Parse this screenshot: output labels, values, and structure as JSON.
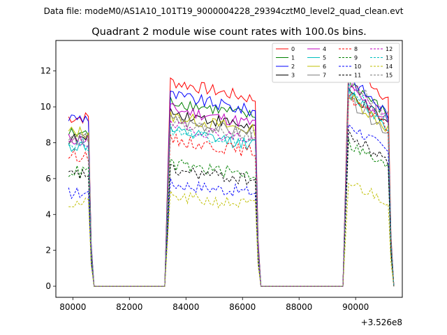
{
  "chart_data": {
    "type": "line",
    "suptitle": "Data file: modeM0/AS1A10_101T19_9000004228_29394cztM0_level2_quad_clean.evt",
    "title": "Quadrant 2 module wise count rates with 100.0s bins.",
    "xlabel": "",
    "ylabel": "",
    "x_offset_label": "+3.526e8",
    "xlim": [
      79400,
      91650
    ],
    "ylim": [
      -0.62,
      13.7
    ],
    "x_ticks": [
      80000,
      82000,
      84000,
      86000,
      88000,
      90000
    ],
    "x_tick_labels": [
      "80000",
      "82000",
      "84000",
      "86000",
      "88000",
      "90000"
    ],
    "y_ticks": [
      0,
      2,
      4,
      6,
      8,
      10,
      12
    ],
    "y_tick_labels": [
      "0",
      "2",
      "4",
      "6",
      "8",
      "10",
      "12"
    ],
    "grid": false,
    "legend": {
      "placement": "top-right",
      "columns": 4,
      "entries": [
        "0",
        "1",
        "2",
        "3",
        "4",
        "5",
        "6",
        "7",
        "8",
        "9",
        "10",
        "11",
        "12",
        "13",
        "14",
        "15"
      ]
    },
    "segments": [
      {
        "start": 79850,
        "end": 80650
      },
      {
        "start": 83350,
        "end": 86550
      },
      {
        "start": 89650,
        "end": 91250
      }
    ],
    "gaps_value": 0,
    "series": [
      {
        "name": "0",
        "color": "#ff0000",
        "dash": "solid",
        "levels": [
          9.4,
          10.6,
          11.4
        ]
      },
      {
        "name": "1",
        "color": "#008000",
        "dash": "solid",
        "levels": [
          8.5,
          9.6,
          10.4
        ]
      },
      {
        "name": "2",
        "color": "#0000ff",
        "dash": "solid",
        "levels": [
          9.4,
          9.9,
          10.5
        ]
      },
      {
        "name": "3",
        "color": "#000000",
        "dash": "solid",
        "levels": [
          8.2,
          9.0,
          9.8
        ]
      },
      {
        "name": "4",
        "color": "#bf00bf",
        "dash": "solid",
        "levels": [
          8.2,
          9.2,
          10.0
        ]
      },
      {
        "name": "5",
        "color": "#00bfbf",
        "dash": "solid",
        "levels": [
          7.8,
          8.0,
          9.8
        ]
      },
      {
        "name": "6",
        "color": "#bfbf00",
        "dash": "solid",
        "levels": [
          8.6,
          8.8,
          9.6
        ]
      },
      {
        "name": "7",
        "color": "#808080",
        "dash": "solid",
        "levels": [
          8.2,
          8.6,
          9.4
        ]
      },
      {
        "name": "8",
        "color": "#ff0000",
        "dash": "dashed",
        "levels": [
          7.3,
          7.6,
          9.6
        ]
      },
      {
        "name": "9",
        "color": "#008000",
        "dash": "dashed",
        "levels": [
          6.4,
          6.3,
          7.2
        ]
      },
      {
        "name": "10",
        "color": "#0000ff",
        "dash": "dashed",
        "levels": [
          5.2,
          5.3,
          8.2
        ]
      },
      {
        "name": "11",
        "color": "#000000",
        "dash": "dashed",
        "levels": [
          6.2,
          6.0,
          7.6
        ]
      },
      {
        "name": "12",
        "color": "#bf00bf",
        "dash": "dashed",
        "levels": [
          8.0,
          8.3,
          10.2
        ]
      },
      {
        "name": "13",
        "color": "#00bfbf",
        "dash": "dashed",
        "levels": [
          7.9,
          8.1,
          10.0
        ]
      },
      {
        "name": "14",
        "color": "#bfbf00",
        "dash": "dashed",
        "levels": [
          4.6,
          4.6,
          5.2
        ]
      },
      {
        "name": "15",
        "color": "#808080",
        "dash": "dashed",
        "levels": [
          8.3,
          8.5,
          10.4
        ]
      }
    ]
  }
}
